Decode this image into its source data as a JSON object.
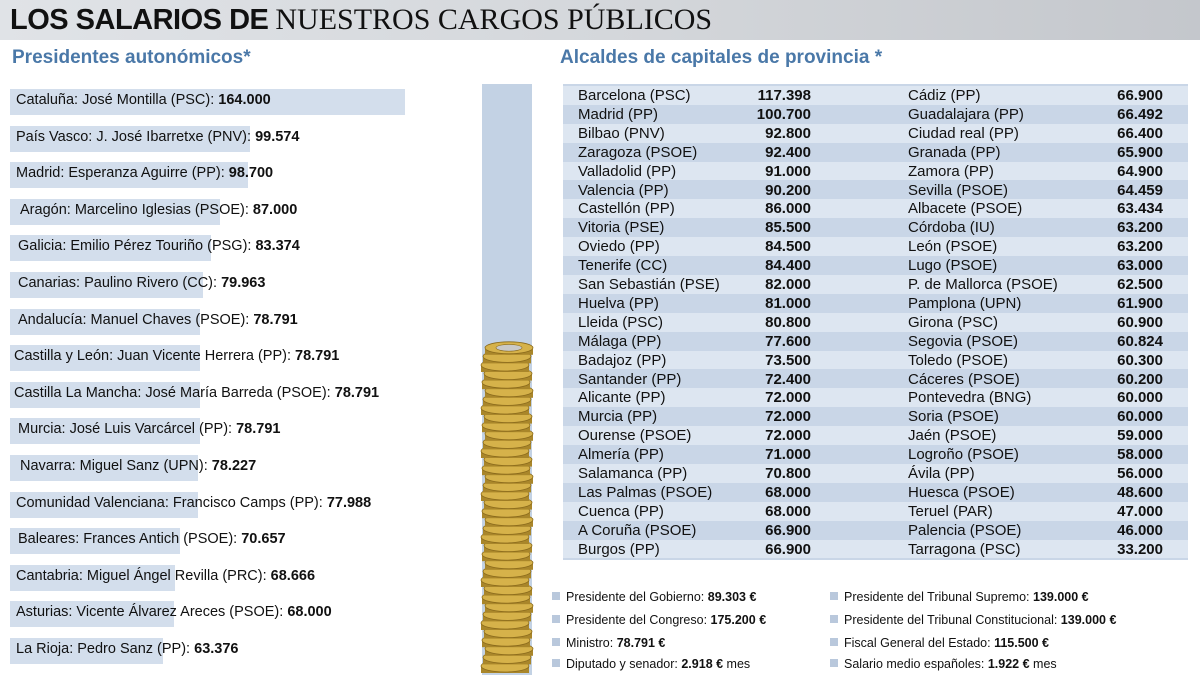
{
  "header": {
    "title_bold": "LOS SALARIOS DE",
    "title_serif": "NUESTROS CARGOS PÚBLICOS"
  },
  "left_section": {
    "title": "Presidentes autonómicos*"
  },
  "right_section": {
    "title": "Alcaldes de capitales de provincia *"
  },
  "colors": {
    "section_title": "#4a78a8",
    "bar_fill": "#d3deec",
    "table_bg": "#c9d6e7",
    "table_alt_row": "#dde6f1",
    "coin_column": "#c3d2e4",
    "coin_gold": "#d6b24a"
  },
  "chart_data": [
    {
      "type": "bar",
      "title": "Presidentes autonómicos*",
      "categories": [
        "Cataluña: José Montilla (PSC): ",
        "País Vasco: J. José Ibarretxe (PNV): ",
        "Madrid: Esperanza Aguirre (PP): ",
        "Aragón: Marcelino Iglesias (PSOE): ",
        "Galicia: Emilio Pérez Touriño (PSG): ",
        "Canarias: Paulino Rivero (CC): ",
        "Andalucía: Manuel Chaves (PSOE): ",
        "Castilla y León: Juan Vicente Herrera (PP): ",
        "Castilla La Mancha: José María Barreda (PSOE): ",
        "Murcia: José Luis Varcárcel (PP): ",
        "Navarra: Miguel Sanz (UPN): ",
        "Comunidad Valenciana: Francisco Camps (PP): ",
        "Baleares: Frances Antich (PSOE): ",
        "Cantabria: Miguel Ángel Revilla (PRC): ",
        "Asturias: Vicente Álvarez Areces (PSOE): ",
        "La Rioja: Pedro Sanz (PP): "
      ],
      "labels": [
        "164.000",
        "99.574",
        "98.700",
        "87.000",
        "83.374",
        "79.963",
        "78.791",
        "78.791",
        "78.791",
        "78.791",
        "78.227",
        "77.988",
        "70.657",
        "68.666",
        "68.000",
        "63.376"
      ],
      "values": [
        164000,
        99574,
        98700,
        87000,
        83374,
        79963,
        78791,
        78791,
        78791,
        78791,
        78227,
        77988,
        70657,
        68666,
        68000,
        63376
      ],
      "grid": false
    },
    {
      "type": "table",
      "title": "Alcaldes de capitales de provincia *",
      "rows": [
        {
          "city": "Barcelona (PSC)",
          "salary": "117.398",
          "city2": "Cádiz (PP)",
          "salary2": "66.900"
        },
        {
          "city": "Madrid (PP)",
          "salary": "100.700",
          "city2": "Guadalajara (PP)",
          "salary2": "66.492"
        },
        {
          "city": "Bilbao (PNV)",
          "salary": "92.800",
          "city2": "Ciudad real (PP)",
          "salary2": "66.400"
        },
        {
          "city": "Zaragoza (PSOE)",
          "salary": "92.400",
          "city2": "Granada (PP)",
          "salary2": "65.900"
        },
        {
          "city": "Valladolid (PP)",
          "salary": "91.000",
          "city2": "Zamora (PP)",
          "salary2": "64.900"
        },
        {
          "city": "Valencia (PP)",
          "salary": "90.200",
          "city2": "Sevilla (PSOE)",
          "salary2": "64.459"
        },
        {
          "city": "Castellón (PP)",
          "salary": "86.000",
          "city2": "Albacete (PSOE)",
          "salary2": "63.434"
        },
        {
          "city": "Vitoria (PSE)",
          "salary": "85.500",
          "city2": "Córdoba (IU)",
          "salary2": "63.200"
        },
        {
          "city": "Oviedo (PP)",
          "salary": "84.500",
          "city2": "León (PSOE)",
          "salary2": "63.200"
        },
        {
          "city": "Tenerife (CC)",
          "salary": "84.400",
          "city2": "Lugo (PSOE)",
          "salary2": "63.000"
        },
        {
          "city": "San Sebastián (PSE)",
          "salary": "82.000",
          "city2": "P. de Mallorca (PSOE)",
          "salary2": "62.500"
        },
        {
          "city": "Huelva (PP)",
          "salary": "81.000",
          "city2": "Pamplona (UPN)",
          "salary2": "61.900"
        },
        {
          "city": "Lleida (PSC)",
          "salary": "80.800",
          "city2": "Girona (PSC)",
          "salary2": "60.900"
        },
        {
          "city": "Málaga (PP)",
          "salary": "77.600",
          "city2": "Segovia (PSOE)",
          "salary2": "60.824"
        },
        {
          "city": "Badajoz (PP)",
          "salary": "73.500",
          "city2": "Toledo (PSOE)",
          "salary2": "60.300"
        },
        {
          "city": "Santander (PP)",
          "salary": "72.400",
          "city2": "Cáceres (PSOE)",
          "salary2": "60.200"
        },
        {
          "city": "Alicante (PP)",
          "salary": "72.000",
          "city2": "Pontevedra (BNG)",
          "salary2": "60.000"
        },
        {
          "city": "Murcia (PP)",
          "salary": "72.000",
          "city2": "Soria (PSOE)",
          "salary2": "60.000"
        },
        {
          "city": "Ourense (PSOE)",
          "salary": "72.000",
          "city2": "Jaén (PSOE)",
          "salary2": "59.000"
        },
        {
          "city": "Almería (PP)",
          "salary": "71.000",
          "city2": "Logroño (PSOE)",
          "salary2": "58.000"
        },
        {
          "city": "Salamanca (PP)",
          "salary": "70.800",
          "city2": "Ávila (PP)",
          "salary2": "56.000"
        },
        {
          "city": "Las Palmas (PSOE)",
          "salary": "68.000",
          "city2": "Huesca (PSOE)",
          "salary2": "48.600"
        },
        {
          "city": "Cuenca (PP)",
          "salary": "68.000",
          "city2": "Teruel (PAR)",
          "salary2": "47.000"
        },
        {
          "city": "A Coruña (PSOE)",
          "salary": "66.900",
          "city2": "Palencia (PSOE)",
          "salary2": "46.000"
        },
        {
          "city": "Burgos (PP)",
          "salary": "66.900",
          "city2": "Tarragona (PSC)",
          "salary2": "33.200"
        }
      ]
    }
  ],
  "footer": [
    {
      "label": "Presidente del Gobierno: ",
      "value": "89.303 €",
      "suffix": ""
    },
    {
      "label": "Presidente del Tribunal Supremo: ",
      "value": "139.000 €",
      "suffix": ""
    },
    {
      "label": "Presidente del Congreso: ",
      "value": "175.200 €",
      "suffix": ""
    },
    {
      "label": "Presidente del Tribunal Constitucional: ",
      "value": "139.000 €",
      "suffix": ""
    },
    {
      "label": "Ministro: ",
      "value": "78.791 €",
      "suffix": ""
    },
    {
      "label": "Fiscal General del Estado: ",
      "value": "115.500 €",
      "suffix": ""
    },
    {
      "label": "Diputado y senador: ",
      "value": "2.918 €",
      "suffix": " mes"
    },
    {
      "label": "Salario medio españoles: ",
      "value": "1.922 €",
      "suffix": " mes"
    }
  ]
}
